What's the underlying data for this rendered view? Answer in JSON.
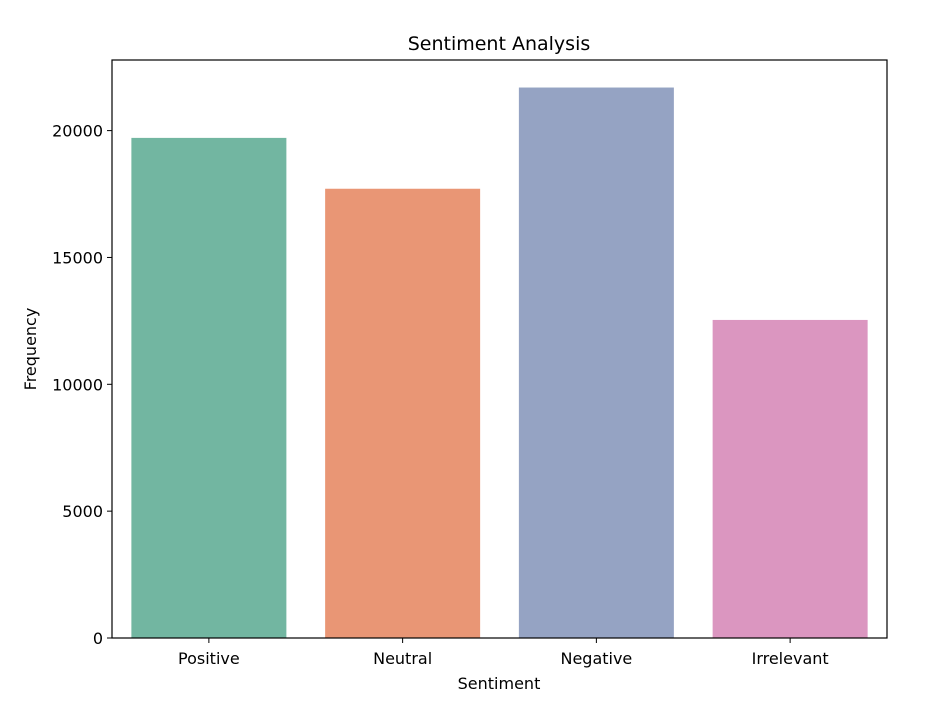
{
  "chart_data": {
    "type": "bar",
    "title": "Sentiment Analysis",
    "xlabel": "Sentiment",
    "ylabel": "Frequency",
    "categories": [
      "Positive",
      "Neutral",
      "Negative",
      "Irrelevant"
    ],
    "values": [
      19713,
      17708,
      21698,
      12537
    ],
    "colors": [
      "#72b6a1",
      "#e99675",
      "#95a3c3",
      "#db96c0"
    ],
    "ylim": [
      0,
      22783
    ],
    "yticks": [
      0,
      5000,
      10000,
      15000,
      20000
    ],
    "ytick_labels": [
      "0",
      "5000",
      "10000",
      "15000",
      "20000"
    ],
    "grid": false,
    "legend": "none"
  }
}
